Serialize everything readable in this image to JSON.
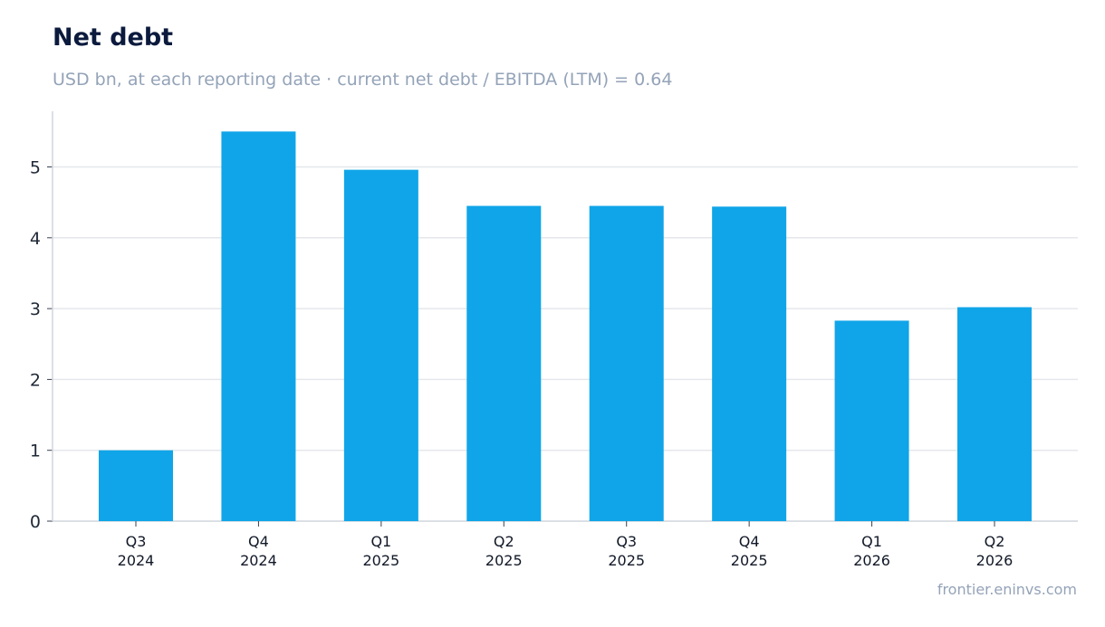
{
  "header": {
    "title": "Net debt",
    "subtitle": "USD bn, at each reporting date · current net debt / EBITDA (LTM) = 0.64"
  },
  "footer": {
    "source": "frontier.eninvs.com"
  },
  "colors": {
    "bar": "#10a5e8",
    "grid": "#e5e7eb",
    "axis": "#d1d5db"
  },
  "chart_data": {
    "type": "bar",
    "title": "Net debt",
    "subtitle": "USD bn, at each reporting date · current net debt / EBITDA (LTM) = 0.64",
    "categories": [
      [
        "Q3",
        "2024"
      ],
      [
        "Q4",
        "2024"
      ],
      [
        "Q1",
        "2025"
      ],
      [
        "Q2",
        "2025"
      ],
      [
        "Q3",
        "2025"
      ],
      [
        "Q4",
        "2025"
      ],
      [
        "Q1",
        "2026"
      ],
      [
        "Q2",
        "2026"
      ]
    ],
    "values": [
      1.0,
      5.5,
      4.96,
      4.45,
      4.45,
      4.44,
      2.83,
      3.02
    ],
    "y_ticks": [
      0,
      1,
      2,
      3,
      4,
      5
    ],
    "ylim": [
      0,
      5.8
    ],
    "grid": true,
    "legend": "none"
  }
}
